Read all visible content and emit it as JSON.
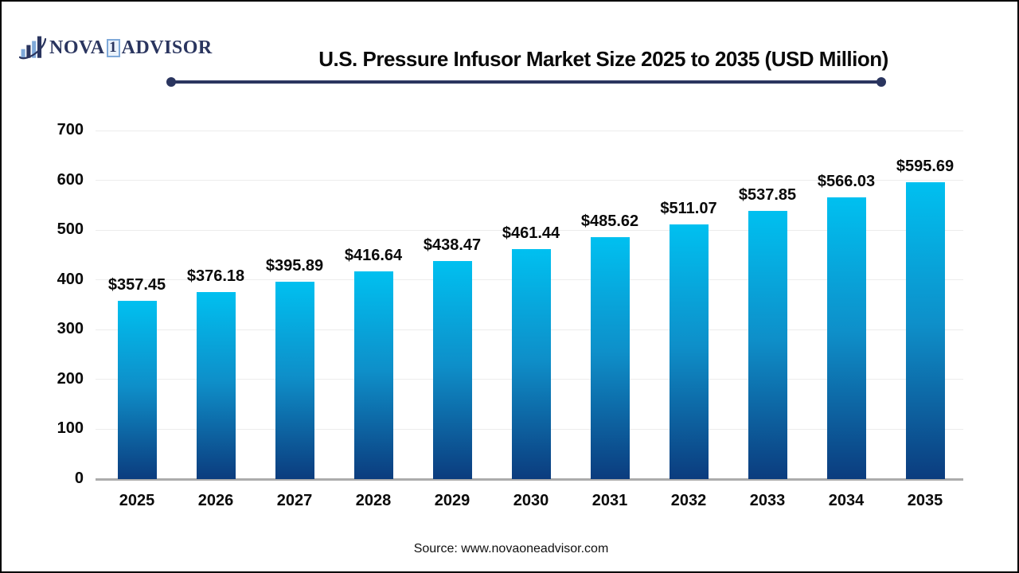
{
  "header": {
    "logo": {
      "icon": "bar-chart-swoosh-icon",
      "nova": "NOVA",
      "one": "1",
      "advisor": "ADVISOR"
    },
    "title": "U.S. Pressure Infusor Market Size 2025 to 2035 (USD Million)"
  },
  "chart_data": {
    "type": "bar",
    "title": "U.S. Pressure Infusor Market Size 2025 to 2035 (USD Million)",
    "categories": [
      "2025",
      "2026",
      "2027",
      "2028",
      "2029",
      "2030",
      "2031",
      "2032",
      "2033",
      "2034",
      "2035"
    ],
    "values": [
      357.45,
      376.18,
      395.89,
      416.64,
      438.47,
      461.44,
      485.62,
      511.07,
      537.85,
      566.03,
      595.69
    ],
    "value_prefix": "$",
    "xlabel": "",
    "ylabel": "",
    "ylim": [
      0,
      700
    ],
    "ytick_interval": 100,
    "grid": true,
    "legend": "none"
  },
  "footer": {
    "source": "Source: www.novaoneadvisor.com"
  },
  "colors": {
    "bar_gradient_top": "#00C0F0",
    "bar_gradient_mid": "#0E8FC9",
    "bar_gradient_bottom": "#0C3C7E",
    "gridline": "#ECECEC",
    "axis_line": "#ACACAC",
    "navy": "#2A355F",
    "logo_light_blue": "#7FA9D9",
    "text": "#0A0A0A"
  }
}
